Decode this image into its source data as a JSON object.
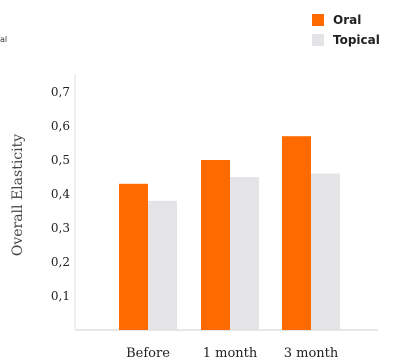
{
  "stray_label": "al",
  "chart_data": {
    "type": "bar",
    "title": "",
    "xlabel": "",
    "ylabel": "Overall Elasticity",
    "categories": [
      "Before",
      "1 month",
      "3 month"
    ],
    "series": [
      {
        "name": "Oral",
        "color": "#ff6a00",
        "values": [
          0.43,
          0.5,
          0.57
        ]
      },
      {
        "name": "Topical",
        "color": "#e4e4e6",
        "values": [
          0.38,
          0.45,
          0.46
        ]
      }
    ],
    "yticks": [
      "0,1",
      "0,2",
      "0,3",
      "0,4",
      "0,5",
      "0,6",
      "0,7"
    ],
    "ytick_values": [
      0.1,
      0.2,
      0.3,
      0.4,
      0.5,
      0.6,
      0.7
    ],
    "ylim": [
      0,
      0.75
    ],
    "grid": false,
    "legend_position": "top-right"
  }
}
